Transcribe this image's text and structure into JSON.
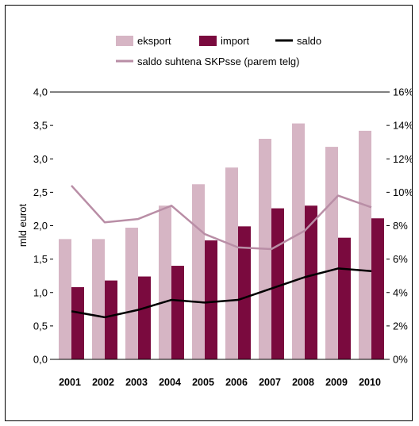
{
  "colors": {
    "eksport": "#d6b5c4",
    "import": "#7a0a3e",
    "saldo": "#000000",
    "saldo_share": "#b98ea6",
    "axis": "#000000",
    "background": "#ffffff"
  },
  "chart_data": {
    "type": "bar",
    "categories": [
      "2001",
      "2002",
      "2003",
      "2004",
      "2005",
      "2006",
      "2007",
      "2008",
      "2009",
      "2010"
    ],
    "series": [
      {
        "name": "eksport",
        "kind": "bar",
        "axis": "left",
        "values": [
          1.8,
          1.8,
          1.97,
          2.3,
          2.62,
          2.87,
          3.3,
          3.53,
          3.18,
          3.42
        ]
      },
      {
        "name": "import",
        "kind": "bar",
        "axis": "left",
        "values": [
          1.08,
          1.18,
          1.24,
          1.4,
          1.78,
          1.99,
          2.26,
          2.3,
          1.82,
          2.11
        ]
      },
      {
        "name": "saldo",
        "kind": "line",
        "axis": "left",
        "values": [
          0.72,
          0.63,
          0.74,
          0.89,
          0.85,
          0.89,
          1.06,
          1.23,
          1.36,
          1.32
        ]
      },
      {
        "name": "saldo suhtena SKPsse (parem telg)",
        "kind": "line",
        "axis": "right",
        "values": [
          10.4,
          8.2,
          8.4,
          9.2,
          7.5,
          6.7,
          6.6,
          7.7,
          9.8,
          9.1
        ]
      }
    ],
    "ylabel": "mld eurot",
    "ylim": [
      0,
      4
    ],
    "yticks": [
      "0,0",
      "0,5",
      "1,0",
      "1,5",
      "2,0",
      "2,5",
      "3,0",
      "3,5",
      "4,0"
    ],
    "y2lim": [
      0,
      16
    ],
    "y2ticks": [
      "0%",
      "2%",
      "4%",
      "6%",
      "8%",
      "10%",
      "12%",
      "14%",
      "16%"
    ],
    "grid": false,
    "legend_position": "top"
  }
}
